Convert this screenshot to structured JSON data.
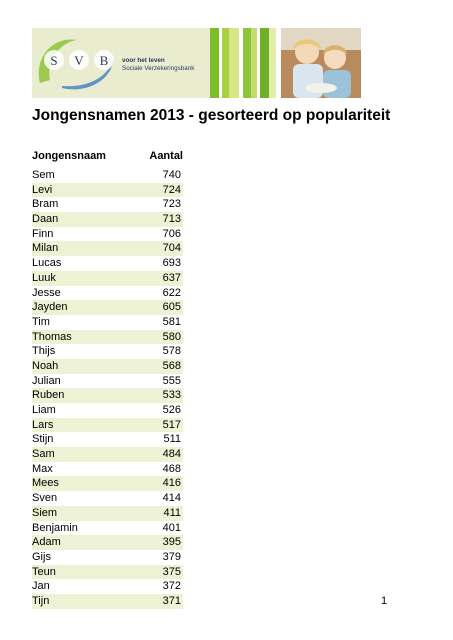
{
  "header": {
    "logo_letters": [
      "S",
      "V",
      "B"
    ],
    "tagline_1": "voor het leven",
    "tagline_2": "Sociale Verzekeringsbank",
    "stripe_colors": [
      "#7cbd2a",
      "#ffffff",
      "#a8cf45",
      "#d7e684",
      "#ffffff",
      "#8cc43a",
      "#c4dc6e",
      "#ffffff",
      "#6fb229",
      "#e4eda8",
      "#ffffff"
    ],
    "photo": "children-photo"
  },
  "title": "Jongensnamen 2013 - gesorteerd op populariteit",
  "table": {
    "col_name": "Jongensnaam",
    "col_count": "Aantal",
    "rows": [
      {
        "name": "Sem",
        "count": "740"
      },
      {
        "name": "Levi",
        "count": "724"
      },
      {
        "name": "Bram",
        "count": "723"
      },
      {
        "name": "Daan",
        "count": "713"
      },
      {
        "name": "Finn",
        "count": "706"
      },
      {
        "name": "Milan",
        "count": "704"
      },
      {
        "name": "Lucas",
        "count": "693"
      },
      {
        "name": "Luuk",
        "count": "637"
      },
      {
        "name": "Jesse",
        "count": "622"
      },
      {
        "name": "Jayden",
        "count": "605"
      },
      {
        "name": "Tim",
        "count": "581"
      },
      {
        "name": "Thomas",
        "count": "580"
      },
      {
        "name": "Thijs",
        "count": "578"
      },
      {
        "name": "Noah",
        "count": "568"
      },
      {
        "name": "Julian",
        "count": "555"
      },
      {
        "name": "Ruben",
        "count": "533"
      },
      {
        "name": "Liam",
        "count": "526"
      },
      {
        "name": "Lars",
        "count": "517"
      },
      {
        "name": "Stijn",
        "count": "511"
      },
      {
        "name": "Sam",
        "count": "484"
      },
      {
        "name": "Max",
        "count": "468"
      },
      {
        "name": "Mees",
        "count": "416"
      },
      {
        "name": "Sven",
        "count": "414"
      },
      {
        "name": "Siem",
        "count": "411"
      },
      {
        "name": "Benjamin",
        "count": "401"
      },
      {
        "name": "Adam",
        "count": "395"
      },
      {
        "name": "Gijs",
        "count": "379"
      },
      {
        "name": "Teun",
        "count": "375"
      },
      {
        "name": "Jan",
        "count": "372"
      },
      {
        "name": "Tijn",
        "count": "371"
      }
    ]
  },
  "page_number": "1"
}
